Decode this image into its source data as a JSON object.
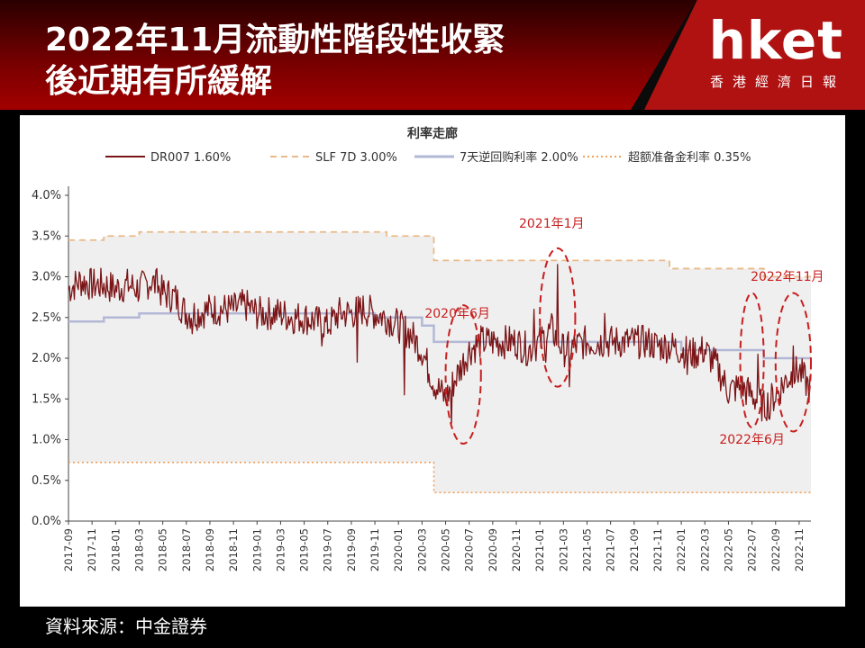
{
  "header": {
    "title_line1": "2022年11月流動性階段性收緊",
    "title_line2": "後近期有所緩解",
    "logo": "hket",
    "logo_sub": "香港經濟日報"
  },
  "source": "資料來源：中金證券",
  "chart_data": {
    "type": "line",
    "title": "利率走廊",
    "x_tick_labels": [
      "2017-09",
      "2017-11",
      "2018-01",
      "2018-03",
      "2018-05",
      "2018-07",
      "2018-09",
      "2018-11",
      "2019-01",
      "2019-03",
      "2019-05",
      "2019-07",
      "2019-09",
      "2019-11",
      "2020-01",
      "2020-03",
      "2020-05",
      "2020-07",
      "2020-09",
      "2020-11",
      "2021-01",
      "2021-03",
      "2021-05",
      "2021-07",
      "2021-09",
      "2021-11",
      "2022-01",
      "2022-03",
      "2022-05",
      "2022-07",
      "2022-09",
      "2022-11"
    ],
    "y_ticks": [
      "0.0%",
      "0.5%",
      "1.0%",
      "1.5%",
      "2.0%",
      "2.5%",
      "3.0%",
      "3.5%",
      "4.0%"
    ],
    "ylim": [
      0,
      4.0
    ],
    "xlim": [
      "2017-09",
      "2022-12"
    ],
    "legend_placement": "top",
    "grid": false,
    "series": [
      {
        "name": "DR007",
        "legend_value": "1.60%",
        "style": "solid",
        "color": "#7b1416",
        "anchor_points": [
          [
            "2017-09",
            2.85
          ],
          [
            "2017-10",
            2.95
          ],
          [
            "2017-11",
            2.9
          ],
          [
            "2017-12",
            2.9
          ],
          [
            "2018-01",
            2.85
          ],
          [
            "2018-02",
            2.9
          ],
          [
            "2018-03",
            2.85
          ],
          [
            "2018-04",
            2.95
          ],
          [
            "2018-05",
            2.8
          ],
          [
            "2018-06",
            2.75
          ],
          [
            "2018-07",
            2.55
          ],
          [
            "2018-08",
            2.55
          ],
          [
            "2018-09",
            2.6
          ],
          [
            "2018-10",
            2.6
          ],
          [
            "2018-11",
            2.6
          ],
          [
            "2018-12",
            2.65
          ],
          [
            "2019-01",
            2.55
          ],
          [
            "2019-02",
            2.55
          ],
          [
            "2019-03",
            2.55
          ],
          [
            "2019-04",
            2.5
          ],
          [
            "2019-05",
            2.5
          ],
          [
            "2019-06",
            2.45
          ],
          [
            "2019-07",
            2.4
          ],
          [
            "2019-08",
            2.55
          ],
          [
            "2019-09",
            2.55
          ],
          [
            "2019-10",
            2.6
          ],
          [
            "2019-11",
            2.55
          ],
          [
            "2019-12",
            2.5
          ],
          [
            "2020-01",
            2.4
          ],
          [
            "2020-02",
            2.3
          ],
          [
            "2020-03",
            2.1
          ],
          [
            "2020-04",
            1.7
          ],
          [
            "2020-05",
            1.5
          ],
          [
            "2020-06",
            1.8
          ],
          [
            "2020-07",
            2.1
          ],
          [
            "2020-08",
            2.2
          ],
          [
            "2020-09",
            2.2
          ],
          [
            "2020-10",
            2.2
          ],
          [
            "2020-11",
            2.2
          ],
          [
            "2020-12",
            2.1
          ],
          [
            "2021-01",
            2.2
          ],
          [
            "2021-02",
            2.35
          ],
          [
            "2021-03",
            2.1
          ],
          [
            "2021-04",
            2.15
          ],
          [
            "2021-05",
            2.2
          ],
          [
            "2021-06",
            2.2
          ],
          [
            "2021-07",
            2.2
          ],
          [
            "2021-08",
            2.2
          ],
          [
            "2021-09",
            2.2
          ],
          [
            "2021-10",
            2.2
          ],
          [
            "2021-11",
            2.15
          ],
          [
            "2021-12",
            2.15
          ],
          [
            "2022-01",
            2.1
          ],
          [
            "2022-02",
            2.05
          ],
          [
            "2022-03",
            2.1
          ],
          [
            "2022-04",
            1.9
          ],
          [
            "2022-05",
            1.6
          ],
          [
            "2022-06",
            1.65
          ],
          [
            "2022-07",
            1.55
          ],
          [
            "2022-08",
            1.4
          ],
          [
            "2022-09",
            1.55
          ],
          [
            "2022-10",
            1.75
          ],
          [
            "2022-11",
            1.85
          ],
          [
            "2022-12",
            1.6
          ]
        ],
        "spikes": [
          [
            "2018-04",
            3.1
          ],
          [
            "2018-05",
            2.95
          ],
          [
            "2018-07",
            2.3
          ],
          [
            "2019-06",
            2.15
          ],
          [
            "2019-09",
            1.95
          ],
          [
            "2020-01",
            1.55
          ],
          [
            "2020-03",
            1.7
          ],
          [
            "2020-05",
            1.2
          ],
          [
            "2020-12",
            2.6
          ],
          [
            "2021-01",
            1.95
          ],
          [
            "2021-02",
            3.15
          ],
          [
            "2021-03",
            1.65
          ],
          [
            "2021-06",
            2.55
          ],
          [
            "2022-01",
            1.8
          ],
          [
            "2022-07",
            2.05
          ],
          [
            "2022-08",
            1.25
          ],
          [
            "2022-10",
            2.15
          ]
        ]
      },
      {
        "name": "SLF 7D",
        "legend_value": "3.00%",
        "style": "dashed",
        "color": "#e9b988",
        "points": [
          [
            "2017-09",
            3.45
          ],
          [
            "2017-12",
            3.45
          ],
          [
            "2017-12",
            3.5
          ],
          [
            "2018-03",
            3.5
          ],
          [
            "2018-03",
            3.55
          ],
          [
            "2019-12",
            3.55
          ],
          [
            "2019-12",
            3.5
          ],
          [
            "2020-04",
            3.5
          ],
          [
            "2020-04",
            3.2
          ],
          [
            "2021-12",
            3.2
          ],
          [
            "2021-12",
            3.1
          ],
          [
            "2022-08",
            3.1
          ],
          [
            "2022-08",
            3.0
          ],
          [
            "2022-12",
            3.0
          ]
        ]
      },
      {
        "name": "7天逆回购利率",
        "legend_value": "2.00%",
        "style": "solid",
        "color": "#b3b8d6",
        "points": [
          [
            "2017-09",
            2.45
          ],
          [
            "2017-12",
            2.45
          ],
          [
            "2017-12",
            2.5
          ],
          [
            "2018-03",
            2.5
          ],
          [
            "2018-03",
            2.55
          ],
          [
            "2019-11",
            2.55
          ],
          [
            "2019-11",
            2.5
          ],
          [
            "2020-03",
            2.5
          ],
          [
            "2020-03",
            2.4
          ],
          [
            "2020-04",
            2.4
          ],
          [
            "2020-04",
            2.2
          ],
          [
            "2022-01",
            2.2
          ],
          [
            "2022-01",
            2.1
          ],
          [
            "2022-08",
            2.1
          ],
          [
            "2022-08",
            2.0
          ],
          [
            "2022-12",
            2.0
          ]
        ]
      },
      {
        "name": "超额准备金利率",
        "legend_value": "0.35%",
        "style": "dotted",
        "color": "#f0a05a",
        "points": [
          [
            "2017-09",
            0.72
          ],
          [
            "2020-04",
            0.72
          ],
          [
            "2020-04",
            0.35
          ],
          [
            "2022-12",
            0.35
          ]
        ]
      }
    ],
    "corridor_fill": "#efefef",
    "annotations": [
      {
        "text": "2020年6月",
        "x": "2020-06",
        "y": 2.5
      },
      {
        "text": "2021年1月",
        "x": "2021-02",
        "y": 3.6
      },
      {
        "text": "2022年11月",
        "x": "2022-10",
        "y": 2.95
      },
      {
        "text": "2022年6月",
        "x": "2022-07",
        "y": 0.95
      }
    ],
    "highlight_ellipses": [
      {
        "x_from": "2020-05",
        "x_to": "2020-08",
        "y_from": 0.95,
        "y_to": 2.65
      },
      {
        "x_from": "2021-01",
        "x_to": "2021-04",
        "y_from": 1.65,
        "y_to": 3.35
      },
      {
        "x_from": "2022-06",
        "x_to": "2022-08",
        "y_from": 1.15,
        "y_to": 2.8
      },
      {
        "x_from": "2022-09",
        "x_to": "2022-12",
        "y_from": 1.1,
        "y_to": 2.8
      }
    ],
    "annotation_color": "#c81e1e"
  }
}
